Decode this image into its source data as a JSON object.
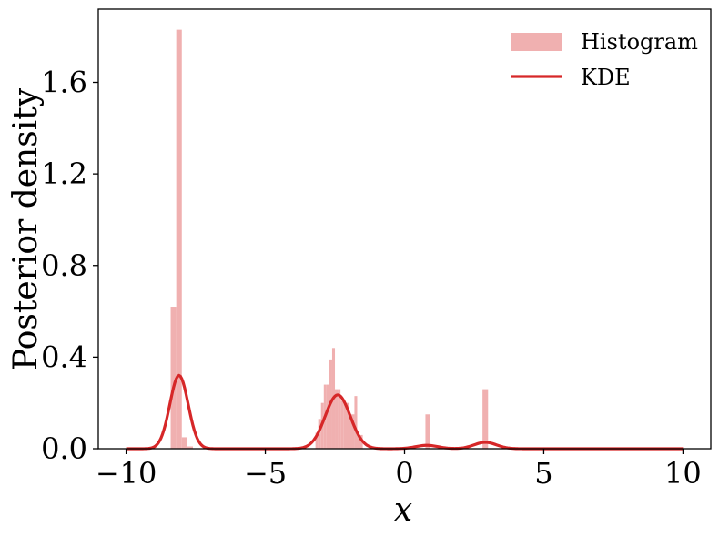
{
  "chart_data": {
    "type": "bar",
    "xlabel": "x",
    "ylabel": "Posterior density",
    "xlim": [
      -11,
      11
    ],
    "ylim": [
      0,
      1.92
    ],
    "xticks": [
      -10,
      -5,
      0,
      5,
      10
    ],
    "xtick_labels": [
      "−10",
      "−5",
      "0",
      "5",
      "10"
    ],
    "yticks": [
      0.0,
      0.4,
      0.8,
      1.2,
      1.6
    ],
    "ytick_labels": [
      "0.0",
      "0.4",
      "0.8",
      "1.2",
      "1.6"
    ],
    "grid": false,
    "legend": {
      "position": "top-right",
      "entries": [
        {
          "label": "Histogram",
          "kind": "patch",
          "color": "#f0b0b0"
        },
        {
          "label": "KDE",
          "kind": "line",
          "color": "#d62728"
        }
      ]
    },
    "histogram": {
      "name": "Histogram",
      "color": "#f0b0b0",
      "bin_width": 0.2,
      "bins": [
        {
          "x0": -8.4,
          "x1": -8.2,
          "value": 0.62
        },
        {
          "x0": -8.2,
          "x1": -8.0,
          "value": 1.83
        },
        {
          "x0": -8.0,
          "x1": -7.8,
          "value": 0.05
        },
        {
          "x0": -7.8,
          "x1": -7.6,
          "value": 0.01
        },
        {
          "x0": -3.2,
          "x1": -3.1,
          "value": 0.07
        },
        {
          "x0": -3.1,
          "x1": -3.0,
          "value": 0.13
        },
        {
          "x0": -3.0,
          "x1": -2.9,
          "value": 0.2
        },
        {
          "x0": -2.9,
          "x1": -2.8,
          "value": 0.28
        },
        {
          "x0": -2.8,
          "x1": -2.7,
          "value": 0.28
        },
        {
          "x0": -2.7,
          "x1": -2.6,
          "value": 0.39
        },
        {
          "x0": -2.6,
          "x1": -2.5,
          "value": 0.44
        },
        {
          "x0": -2.5,
          "x1": -2.4,
          "value": 0.26
        },
        {
          "x0": -2.4,
          "x1": -2.3,
          "value": 0.26
        },
        {
          "x0": -2.3,
          "x1": -2.2,
          "value": 0.21
        },
        {
          "x0": -2.2,
          "x1": -2.0,
          "value": 0.2
        },
        {
          "x0": -2.0,
          "x1": -1.8,
          "value": 0.15
        },
        {
          "x0": -1.8,
          "x1": -1.7,
          "value": 0.23
        },
        {
          "x0": -1.7,
          "x1": -1.5,
          "value": 0.06
        },
        {
          "x0": 0.75,
          "x1": 0.9,
          "value": 0.15
        },
        {
          "x0": 2.8,
          "x1": 3.0,
          "value": 0.26
        }
      ]
    },
    "kde": {
      "name": "KDE",
      "color": "#d62728",
      "x_range": [
        -10,
        10
      ],
      "components": [
        {
          "center": -8.1,
          "sigma": 0.33,
          "peak": 0.32
        },
        {
          "center": -2.4,
          "sigma": 0.45,
          "peak": 0.235
        },
        {
          "center": 0.8,
          "sigma": 0.4,
          "peak": 0.015
        },
        {
          "center": 2.9,
          "sigma": 0.4,
          "peak": 0.028
        }
      ]
    }
  }
}
